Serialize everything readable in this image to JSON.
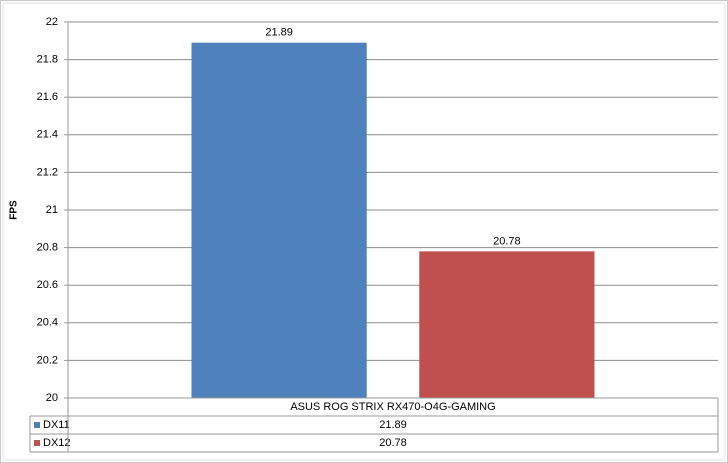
{
  "chart_data": {
    "type": "bar",
    "y_label": "FPS",
    "categories": [
      "ASUS ROG STRIX RX470-O4G-GAMING"
    ],
    "series": [
      {
        "name": "DX11",
        "color": "#4f81bd",
        "values": [
          21.89
        ]
      },
      {
        "name": "DX12",
        "color": "#c0504d",
        "values": [
          20.78
        ]
      }
    ],
    "ylim": [
      20,
      22
    ],
    "yticks": [
      20,
      20.2,
      20.4,
      20.6,
      20.8,
      21,
      21.2,
      21.4,
      21.6,
      21.8,
      22
    ],
    "grid": true,
    "data_table": true
  }
}
